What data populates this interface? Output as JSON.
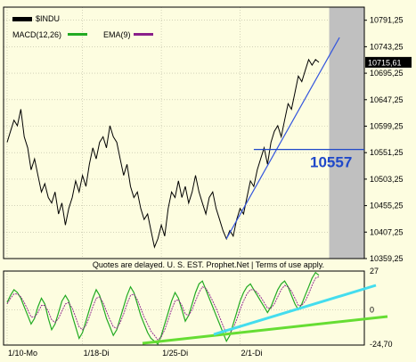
{
  "chart_data": [
    {
      "type": "line",
      "title": "$INDU",
      "instrument": "$INDU",
      "legend": [
        "$INDU"
      ],
      "x_ticks": [
        "1/10-Mo",
        "1/18-Di",
        "1/25-Di",
        "2/1-Di"
      ],
      "y_ticks": [
        "10791,25",
        "10743,25",
        "10695,25",
        "10647,25",
        "10599,25",
        "10551,25",
        "10503,25",
        "10455,25",
        "10407,25",
        "10359,25"
      ],
      "ylim": [
        10359.25,
        10815
      ],
      "last_price_label": "10715,61",
      "series": [
        {
          "values": [
            10570,
            10590,
            10610,
            10600,
            10630,
            10580,
            10560,
            10520,
            10540,
            10510,
            10480,
            10495,
            10470,
            10460,
            10480,
            10440,
            10460,
            10420,
            10450,
            10470,
            10500,
            10480,
            10510,
            10490,
            10530,
            10560,
            10540,
            10570,
            10580,
            10560,
            10600,
            10580,
            10570,
            10540,
            10510,
            10530,
            10490,
            10470,
            10480,
            10450,
            10430,
            10440,
            10410,
            10380,
            10395,
            10420,
            10400,
            10450,
            10480,
            10470,
            10500,
            10470,
            10490,
            10460,
            10480,
            10510,
            10480,
            10460,
            10440,
            10470,
            10480,
            10450,
            10430,
            10410,
            10395,
            10410,
            10400,
            10430,
            10450,
            10440,
            10470,
            10500,
            10490,
            10520,
            10540,
            10560,
            10530,
            10570,
            10590,
            10600,
            10580,
            10610,
            10640,
            10630,
            10660,
            10690,
            10680,
            10700,
            10720,
            10710,
            10720,
            10715
          ]
        }
      ],
      "annotations": [
        {
          "text": "10557",
          "value": 10557,
          "color": "#1f48c9"
        },
        {
          "text": "uptrend line",
          "from": [
            64,
            10395
          ],
          "to": [
            97,
            10760
          ],
          "color": "#3355dd"
        }
      ],
      "shaded_region": {
        "from_index": 94,
        "color": "#c0c0c0"
      },
      "grid": true
    },
    {
      "type": "line",
      "indicator": "MACD",
      "legend": [
        {
          "label": "MACD(12,26)",
          "color": "#22aa22"
        },
        {
          "label": "EMA(9)",
          "color": "#8a1f8a"
        }
      ],
      "x_ticks": [
        "1/10-Mo",
        "1/18-Di",
        "1/25-Di",
        "2/1-Di"
      ],
      "y_ticks": [
        "27",
        "0",
        "-24,70"
      ],
      "ylim": [
        -24.7,
        27
      ],
      "series": [
        {
          "name": "MACD(12,26)",
          "values": [
            5,
            10,
            14,
            12,
            8,
            2,
            -4,
            -10,
            -6,
            2,
            8,
            4,
            -6,
            -14,
            -10,
            -2,
            6,
            10,
            6,
            -4,
            -12,
            -20,
            -16,
            -8,
            0,
            8,
            14,
            10,
            2,
            -6,
            -12,
            -18,
            -14,
            -6,
            2,
            10,
            16,
            12,
            4,
            -4,
            -10,
            -16,
            -20,
            -22,
            -24,
            -18,
            -10,
            -2,
            6,
            12,
            8,
            0,
            -8,
            -4,
            4,
            12,
            18,
            20,
            14,
            8,
            2,
            -4,
            -10,
            -16,
            -22,
            -18,
            -10,
            -2,
            6,
            12,
            16,
            18,
            14,
            10,
            6,
            2,
            -2,
            2,
            8,
            14,
            18,
            20,
            16,
            10,
            4,
            0,
            4,
            10,
            16,
            22,
            26,
            24
          ]
        },
        {
          "name": "EMA(9)",
          "values": [
            4,
            8,
            11,
            11,
            9,
            5,
            0,
            -5,
            -5,
            -2,
            3,
            3,
            -1,
            -7,
            -9,
            -6,
            -1,
            4,
            5,
            1,
            -5,
            -12,
            -14,
            -11,
            -5,
            2,
            8,
            9,
            5,
            -1,
            -7,
            -12,
            -13,
            -9,
            -3,
            4,
            10,
            11,
            7,
            1,
            -5,
            -10,
            -15,
            -18,
            -21,
            -19,
            -14,
            -7,
            0,
            6,
            7,
            3,
            -3,
            -4,
            0,
            6,
            12,
            16,
            15,
            11,
            6,
            1,
            -5,
            -11,
            -17,
            -17,
            -13,
            -7,
            0,
            6,
            11,
            14,
            14,
            12,
            9,
            5,
            1,
            1,
            4,
            9,
            14,
            17,
            16,
            13,
            8,
            3,
            3,
            6,
            11,
            17,
            22,
            23
          ]
        }
      ],
      "annotations": [
        {
          "text": "cyan trend line",
          "color": "#44ddee"
        },
        {
          "text": "green trend line",
          "color": "#66dd33"
        }
      ],
      "grid": true
    }
  ],
  "footer_note": "Quotes are delayed. U. S. EST. Prophet.Net | Terms of use apply.",
  "colors": {
    "background": "#fdfde0",
    "price": "#000000",
    "macd": "#22aa22",
    "ema": "#8a1f8a",
    "annotation": "#1f48c9"
  }
}
